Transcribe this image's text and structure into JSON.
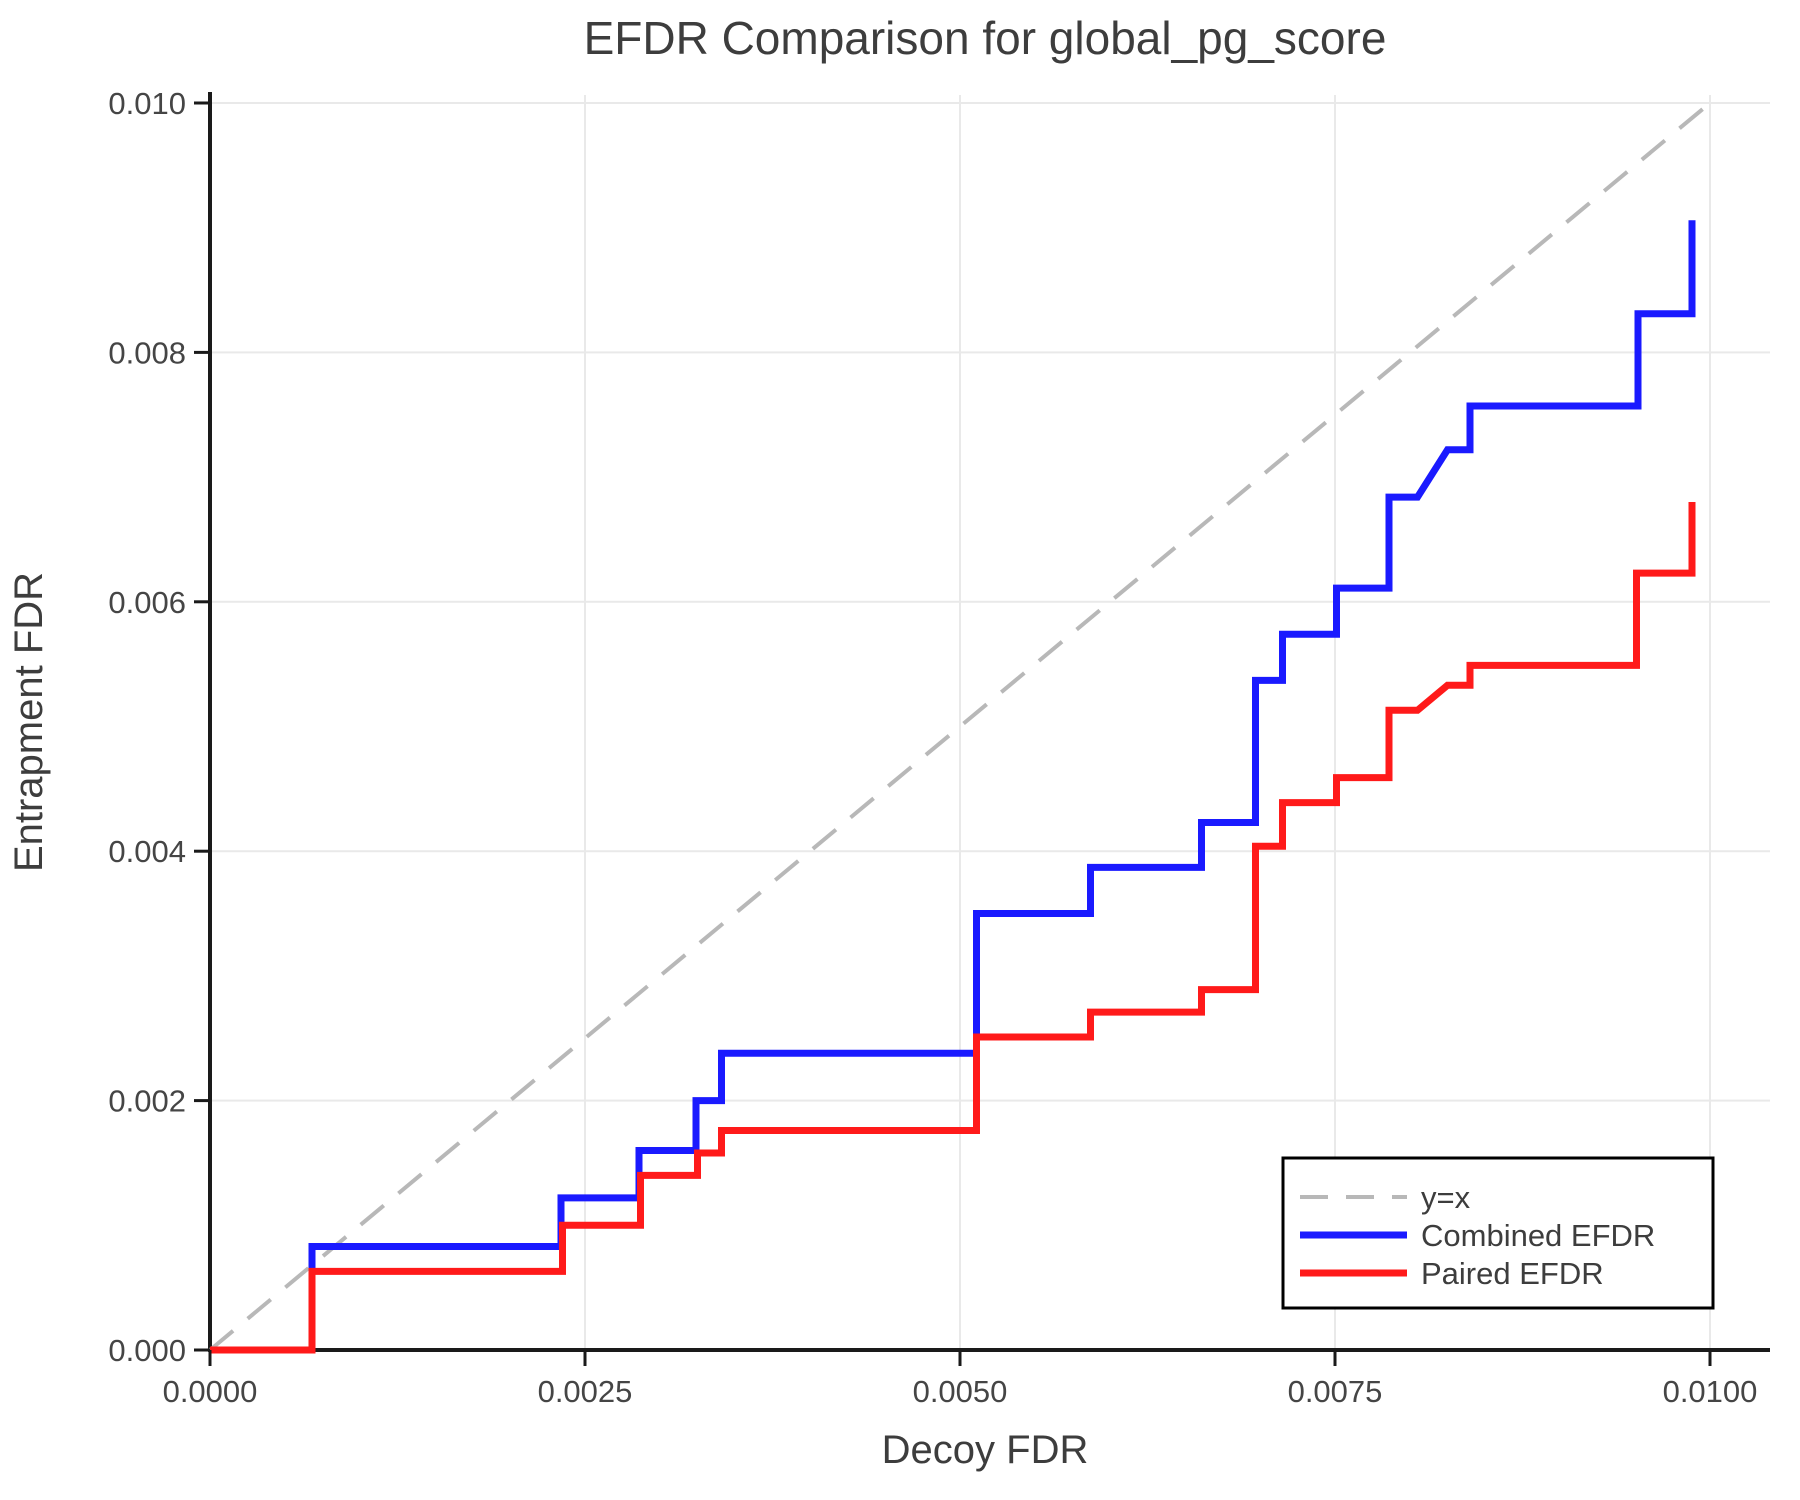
{
  "title": "EFDR Comparison for global_pg_score",
  "chart_data": {
    "type": "line",
    "subtype": "step",
    "title": "EFDR Comparison for global_pg_score",
    "xlabel": "Decoy FDR",
    "ylabel": "Entrapment FDR",
    "xlim": [
      0.0,
      0.0104
    ],
    "ylim": [
      0.0,
      0.01005
    ],
    "grid": true,
    "x_ticks": [
      0.0,
      0.0025,
      0.005,
      0.0075,
      0.01
    ],
    "x_tick_labels": [
      "0.0000",
      "0.0025",
      "0.0050",
      "0.0075",
      "0.0100"
    ],
    "y_ticks": [
      0.0,
      0.002,
      0.004,
      0.006,
      0.008,
      0.01
    ],
    "y_tick_labels": [
      "0.000",
      "0.002",
      "0.004",
      "0.006",
      "0.008",
      "0.010"
    ],
    "reference_line": {
      "label": "y=x",
      "from": [
        0.0,
        0.0
      ],
      "to": [
        0.01,
        0.01
      ],
      "color": "#b8b8b8",
      "dashed": true
    },
    "legend": {
      "position": "lower right",
      "entries": [
        {
          "label": "y=x",
          "color": "#b8b8b8",
          "dashed": true
        },
        {
          "label": "Combined EFDR",
          "color": "#1a1aff",
          "dashed": false
        },
        {
          "label": "Paired EFDR",
          "color": "#ff1a1a",
          "dashed": false
        }
      ]
    },
    "series": [
      {
        "name": "Combined EFDR",
        "color": "#1a1aff",
        "points": [
          [
            0.0,
            0.0
          ],
          [
            0.00068,
            0.0
          ],
          [
            0.00068,
            0.00083
          ],
          [
            0.00234,
            0.00083
          ],
          [
            0.00234,
            0.00122
          ],
          [
            0.00286,
            0.00122
          ],
          [
            0.00286,
            0.0016
          ],
          [
            0.00324,
            0.0016
          ],
          [
            0.00324,
            0.002
          ],
          [
            0.00341,
            0.002
          ],
          [
            0.00341,
            0.00238
          ],
          [
            0.00511,
            0.00238
          ],
          [
            0.00511,
            0.0035
          ],
          [
            0.00587,
            0.0035
          ],
          [
            0.00587,
            0.00387
          ],
          [
            0.00661,
            0.00387
          ],
          [
            0.00661,
            0.00423
          ],
          [
            0.00697,
            0.00423
          ],
          [
            0.00697,
            0.00537
          ],
          [
            0.00715,
            0.00537
          ],
          [
            0.00715,
            0.00574
          ],
          [
            0.00751,
            0.00574
          ],
          [
            0.00751,
            0.00611
          ],
          [
            0.00786,
            0.00611
          ],
          [
            0.00786,
            0.00684
          ],
          [
            0.00805,
            0.00684
          ],
          [
            0.00825,
            0.00722
          ],
          [
            0.0084,
            0.00722
          ],
          [
            0.0084,
            0.00757
          ],
          [
            0.00952,
            0.00757
          ],
          [
            0.00952,
            0.00831
          ],
          [
            0.00988,
            0.00831
          ],
          [
            0.00988,
            0.00906
          ]
        ]
      },
      {
        "name": "Paired EFDR",
        "color": "#ff1a1a",
        "points": [
          [
            0.0,
            0.0
          ],
          [
            0.00068,
            0.0
          ],
          [
            0.00068,
            0.00063
          ],
          [
            0.00235,
            0.00063
          ],
          [
            0.00235,
            0.001
          ],
          [
            0.00287,
            0.001
          ],
          [
            0.00287,
            0.0014
          ],
          [
            0.00325,
            0.0014
          ],
          [
            0.00325,
            0.00158
          ],
          [
            0.00341,
            0.00158
          ],
          [
            0.00341,
            0.00176
          ],
          [
            0.00511,
            0.00176
          ],
          [
            0.00511,
            0.00251
          ],
          [
            0.00587,
            0.00251
          ],
          [
            0.00587,
            0.00271
          ],
          [
            0.00661,
            0.00271
          ],
          [
            0.00661,
            0.00289
          ],
          [
            0.00697,
            0.00289
          ],
          [
            0.00697,
            0.00404
          ],
          [
            0.00715,
            0.00404
          ],
          [
            0.00715,
            0.00439
          ],
          [
            0.00751,
            0.00439
          ],
          [
            0.00751,
            0.00459
          ],
          [
            0.00786,
            0.00459
          ],
          [
            0.00786,
            0.00513
          ],
          [
            0.00805,
            0.00513
          ],
          [
            0.00825,
            0.00533
          ],
          [
            0.0084,
            0.00533
          ],
          [
            0.0084,
            0.00549
          ],
          [
            0.00951,
            0.00549
          ],
          [
            0.00951,
            0.00623
          ],
          [
            0.00988,
            0.00623
          ],
          [
            0.00988,
            0.0068
          ]
        ]
      }
    ],
    "colors": {
      "text": "#3d3d3d",
      "tick_text": "#454545",
      "spine": "#1a1a1a",
      "grid": "#e9e9e9",
      "background": "#ffffff"
    }
  }
}
